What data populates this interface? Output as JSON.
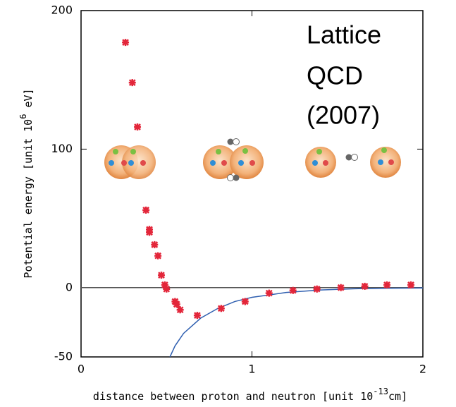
{
  "chart_data": {
    "type": "scatter",
    "x_label": {
      "text": "distance between proton and neutron [unit 10",
      "sup": "-13",
      "after": "cm]"
    },
    "y_label": {
      "text": "Potential energy  [unit 10",
      "sup": "6",
      "after": " eV]"
    },
    "annotation_lines": [
      "Lattice",
      "QCD",
      "(2007)"
    ],
    "xlim": [
      0,
      2
    ],
    "ylim": [
      -50,
      200
    ],
    "xticks": [
      0,
      1,
      2
    ],
    "yticks": [
      -50,
      0,
      100,
      200
    ],
    "hline": 0,
    "points": {
      "color": "#e3263a",
      "x": [
        0.26,
        0.3,
        0.33,
        0.38,
        0.4,
        0.4,
        0.43,
        0.45,
        0.47,
        0.49,
        0.5,
        0.55,
        0.56,
        0.58,
        0.68,
        0.82,
        0.96,
        1.1,
        1.24,
        1.38,
        1.52,
        1.66,
        1.79,
        1.93
      ],
      "values": [
        177,
        148,
        116,
        56,
        42,
        40,
        31,
        23,
        9,
        2,
        -1,
        -10,
        -12,
        -16,
        -20,
        -15,
        -10,
        -4,
        -2,
        -1,
        0,
        1,
        2,
        2
      ]
    },
    "curve": {
      "color": "#2f5fb0",
      "x": [
        0.52,
        0.55,
        0.6,
        0.7,
        0.8,
        0.9,
        1.0,
        1.2,
        1.4,
        1.6,
        1.8,
        2.0
      ],
      "values": [
        -50,
        -42,
        -33,
        -22,
        -15,
        -10,
        -7,
        -3.5,
        -1.7,
        -0.8,
        -0.4,
        -0.2
      ]
    }
  }
}
